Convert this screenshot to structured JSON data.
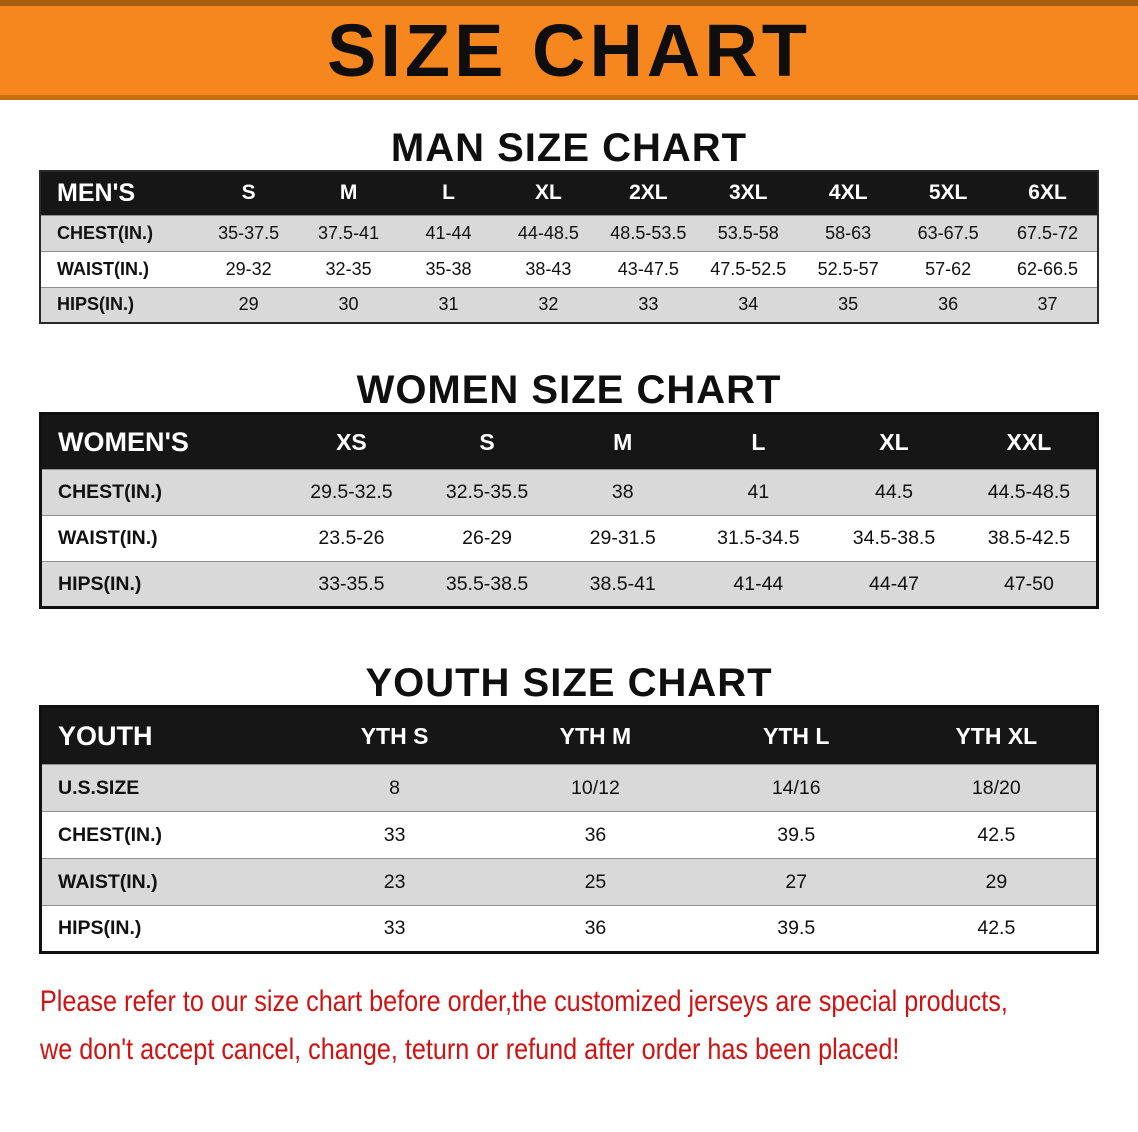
{
  "banner": {
    "title": "SIZE CHART"
  },
  "colors": {
    "banner_orange": "#f6871f",
    "table_header_black": "#161616",
    "stripe_gray": "#d9d9d9",
    "note_red": "#cf1212"
  },
  "sections": {
    "men": {
      "heading": "MAN SIZE CHART",
      "table": {
        "header": [
          "MEN'S",
          "S",
          "M",
          "L",
          "XL",
          "2XL",
          "3XL",
          "4XL",
          "5XL",
          "6XL"
        ],
        "rows": [
          [
            "CHEST(IN.)",
            "35-37.5",
            "37.5-41",
            "41-44",
            "44-48.5",
            "48.5-53.5",
            "53.5-58",
            "58-63",
            "63-67.5",
            "67.5-72"
          ],
          [
            "WAIST(IN.)",
            "29-32",
            "32-35",
            "35-38",
            "38-43",
            "43-47.5",
            "47.5-52.5",
            "52.5-57",
            "57-62",
            "62-66.5"
          ],
          [
            "HIPS(IN.)",
            "29",
            "30",
            "31",
            "32",
            "33",
            "34",
            "35",
            "36",
            "37"
          ]
        ]
      }
    },
    "women": {
      "heading": "WOMEN SIZE CHART",
      "table": {
        "header": [
          "WOMEN'S",
          "XS",
          "S",
          "M",
          "L",
          "XL",
          "XXL"
        ],
        "rows": [
          [
            "CHEST(IN.)",
            "29.5-32.5",
            "32.5-35.5",
            "38",
            "41",
            "44.5",
            "44.5-48.5"
          ],
          [
            "WAIST(IN.)",
            "23.5-26",
            "26-29",
            "29-31.5",
            "31.5-34.5",
            "34.5-38.5",
            "38.5-42.5"
          ],
          [
            "HIPS(IN.)",
            "33-35.5",
            "35.5-38.5",
            "38.5-41",
            "41-44",
            "44-47",
            "47-50"
          ]
        ]
      }
    },
    "youth": {
      "heading": "YOUTH SIZE CHART",
      "table": {
        "header": [
          "YOUTH",
          "YTH S",
          "YTH M",
          "YTH L",
          "YTH XL"
        ],
        "rows": [
          [
            "U.S.SIZE",
            "8",
            "10/12",
            "14/16",
            "18/20"
          ],
          [
            "CHEST(IN.)",
            "33",
            "36",
            "39.5",
            "42.5"
          ],
          [
            "WAIST(IN.)",
            "23",
            "25",
            "27",
            "29"
          ],
          [
            "HIPS(IN.)",
            "33",
            "36",
            "39.5",
            "42.5"
          ]
        ]
      }
    }
  },
  "footer_note": {
    "line1": "Please refer to our size chart before order,the customized jerseys are special products,",
    "line2": "we don't accept cancel, change, teturn or refund after order has been placed!"
  }
}
